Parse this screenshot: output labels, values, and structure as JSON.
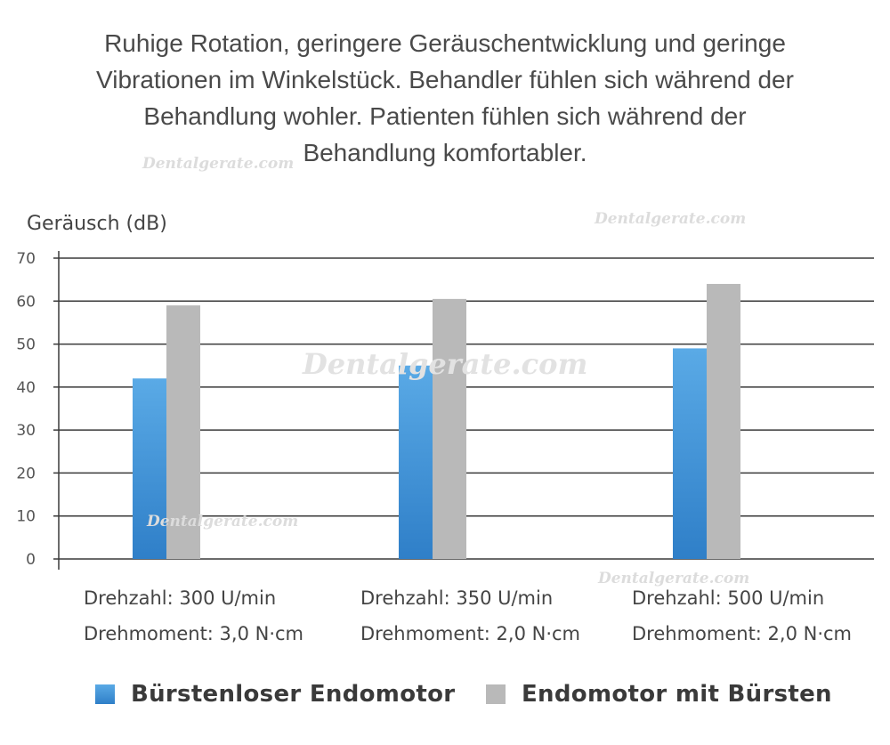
{
  "headline": {
    "line1": "Ruhige Rotation, geringere Geräuschentwicklung und geringe",
    "line2": "Vibrationen im Winkelstück. Behandler fühlen sich während der",
    "line3": "Behandlung wohler. Patienten fühlen sich während der",
    "line4": "Behandlung komfortabler."
  },
  "watermark": "Dentalgerate.com",
  "colors": {
    "series1_top": "#5aaae6",
    "series1_bottom": "#2f7fc8",
    "series2": "#b9b9b9",
    "grid": "#3a3a3a"
  },
  "chart_data": {
    "type": "bar",
    "ylabel": "Geräusch (dB)",
    "ylim": [
      0,
      70
    ],
    "yticks": [
      0,
      10,
      20,
      30,
      40,
      50,
      60,
      70
    ],
    "grid": true,
    "legend_position": "bottom",
    "categories": [
      {
        "line1": "Drehzahl: 300 U/min",
        "line2": "Drehmoment: 3,0 N·cm"
      },
      {
        "line1": "Drehzahl: 350 U/min",
        "line2": "Drehmoment: 2,0 N·cm"
      },
      {
        "line1": "Drehzahl: 500 U/min",
        "line2": "Drehmoment: 2,0 N·cm"
      }
    ],
    "series": [
      {
        "name": "Bürstenloser Endomotor",
        "values": [
          42,
          45,
          49
        ]
      },
      {
        "name": "Endomotor mit Bürsten",
        "values": [
          59,
          60.5,
          64
        ]
      }
    ]
  }
}
